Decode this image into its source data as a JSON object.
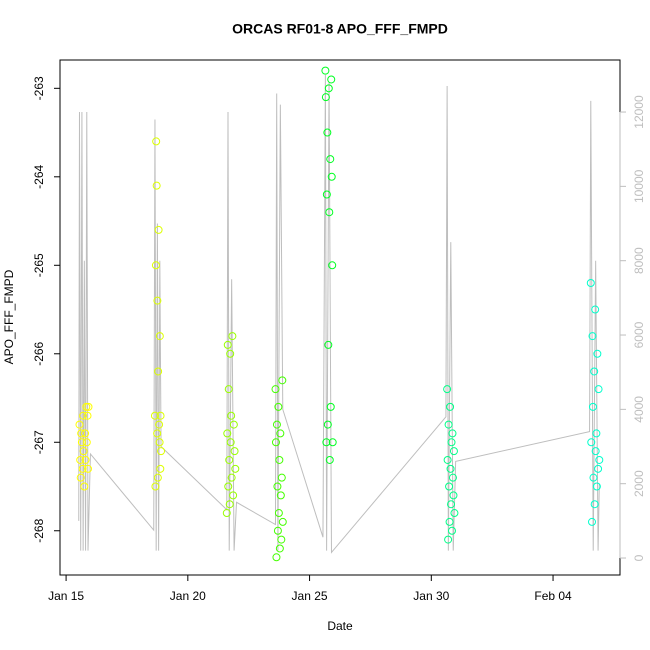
{
  "chart_data": {
    "type": "scatter",
    "title": "ORCAS RF01-8 APO_FFF_FMPD",
    "xlabel": "Date",
    "ylabel": "APO_FFF_FMPD",
    "xlim": [
      14.75,
      37.75
    ],
    "ylim": [
      -268.5,
      -262.68
    ],
    "y2lim": [
      -457,
      13400
    ],
    "xticks": [
      {
        "value": 15,
        "label": "Jan 15"
      },
      {
        "value": 20,
        "label": "Jan 20"
      },
      {
        "value": 25,
        "label": "Jan 25"
      },
      {
        "value": 30,
        "label": "Jan 30"
      },
      {
        "value": 35,
        "label": "Feb 04"
      }
    ],
    "yticks": [
      -263,
      -264,
      -265,
      -266,
      -267,
      -268
    ],
    "y2ticks": [
      0,
      2000,
      4000,
      6000,
      8000,
      10000,
      12000
    ],
    "series": [
      {
        "type": "line",
        "axis": "y2",
        "color": "#bebebe",
        "x": [
          15.52,
          15.55,
          15.6,
          15.65,
          15.7,
          15.75,
          15.8,
          15.85,
          15.9,
          16.0,
          18.6,
          18.65,
          18.7,
          18.75,
          18.8,
          18.85,
          18.9,
          21.6,
          21.65,
          21.7,
          21.8,
          21.9,
          22.0,
          23.6,
          23.65,
          23.7,
          23.8,
          23.9,
          25.55,
          25.65,
          25.7,
          25.8,
          25.9,
          30.6,
          30.65,
          30.7,
          30.8,
          30.9,
          31.0,
          36.5,
          36.55,
          36.65,
          36.75,
          36.85,
          36.9
        ],
        "values": [
          1000,
          12000,
          200,
          12000,
          200,
          8000,
          200,
          12000,
          200,
          2800,
          750,
          11800,
          200,
          9000,
          200,
          8000,
          3000,
          1300,
          12000,
          200,
          7500,
          200,
          1500,
          900,
          12500,
          200,
          12200,
          4000,
          560,
          13000,
          200,
          12800,
          150,
          3800,
          12700,
          200,
          8500,
          200,
          2600,
          3400,
          12300,
          200,
          8000,
          200,
          2000
        ]
      },
      {
        "color": "#ffff00",
        "x": [
          15.55,
          15.58,
          15.6,
          15.62,
          15.65,
          15.68,
          15.7,
          15.72,
          15.75,
          15.78,
          15.8,
          15.83,
          15.85,
          15.88,
          15.9,
          15.92
        ],
        "values": [
          -266.8,
          -267.2,
          -267.4,
          -266.9,
          -267.0,
          -267.3,
          -266.7,
          -267.1,
          -267.5,
          -266.9,
          -267.2,
          -266.6,
          -267.0,
          -266.7,
          -267.3,
          -266.6
        ]
      },
      {
        "color": "#ddff00",
        "x": [
          18.65,
          18.67,
          18.69,
          18.7,
          18.72,
          18.74,
          18.75,
          18.77,
          18.78,
          18.8,
          18.82,
          18.84,
          18.85,
          18.87,
          18.88,
          18.9
        ],
        "values": [
          -266.7,
          -267.5,
          -265.0,
          -263.6,
          -264.1,
          -266.9,
          -265.4,
          -267.4,
          -266.2,
          -264.6,
          -266.8,
          -267.0,
          -265.8,
          -267.3,
          -266.7,
          -267.1
        ]
      },
      {
        "color": "#99ff00",
        "x": [
          21.6,
          21.62,
          21.64,
          21.66,
          21.68,
          21.7,
          21.72,
          21.74,
          21.76,
          21.78,
          21.8,
          21.83,
          21.86,
          21.89,
          21.92,
          21.95
        ],
        "values": [
          -267.8,
          -266.9,
          -265.9,
          -267.5,
          -266.4,
          -267.2,
          -267.7,
          -266.0,
          -267.0,
          -266.7,
          -267.4,
          -265.8,
          -267.6,
          -266.8,
          -267.1,
          -267.3
        ]
      },
      {
        "color": "#44ff00",
        "x": [
          23.6,
          23.62,
          23.64,
          23.66,
          23.68,
          23.7,
          23.72,
          23.74,
          23.76,
          23.78,
          23.8,
          23.82,
          23.84,
          23.86,
          23.88,
          23.9
        ],
        "values": [
          -266.4,
          -267.0,
          -268.3,
          -266.8,
          -267.5,
          -268.0,
          -266.6,
          -267.8,
          -267.2,
          -268.2,
          -266.9,
          -267.6,
          -268.1,
          -267.4,
          -266.3,
          -267.9
        ]
      },
      {
        "color": "#00ff22",
        "x": [
          25.65,
          25.67,
          25.69,
          25.71,
          25.73,
          25.75,
          25.77,
          25.79,
          25.81,
          25.83,
          25.85,
          25.87,
          25.89,
          25.91,
          25.93,
          25.95
        ],
        "values": [
          -262.8,
          -263.1,
          -267.0,
          -264.2,
          -263.5,
          -266.8,
          -265.9,
          -263.0,
          -264.4,
          -267.2,
          -263.8,
          -266.6,
          -262.9,
          -264.0,
          -265.0,
          -267.0
        ]
      },
      {
        "color": "#00ff88",
        "x": [
          30.65,
          30.67,
          30.69,
          30.71,
          30.73,
          30.75,
          30.77,
          30.79,
          30.81,
          30.83,
          30.85,
          30.87,
          30.89,
          30.91,
          30.93,
          30.95
        ],
        "values": [
          -266.4,
          -267.2,
          -268.1,
          -266.8,
          -267.5,
          -267.9,
          -266.6,
          -267.3,
          -267.7,
          -267.0,
          -268.0,
          -266.9,
          -267.4,
          -267.6,
          -267.1,
          -267.8
        ]
      },
      {
        "color": "#00ffcc",
        "x": [
          36.55,
          36.57,
          36.6,
          36.62,
          36.64,
          36.66,
          36.69,
          36.71,
          36.73,
          36.75,
          36.78,
          36.8,
          36.82,
          36.85,
          36.87,
          36.9
        ],
        "values": [
          -265.2,
          -267.0,
          -267.9,
          -265.8,
          -266.6,
          -267.4,
          -266.2,
          -267.7,
          -265.5,
          -267.1,
          -266.9,
          -267.5,
          -266.0,
          -267.3,
          -266.4,
          -267.2
        ]
      }
    ]
  }
}
